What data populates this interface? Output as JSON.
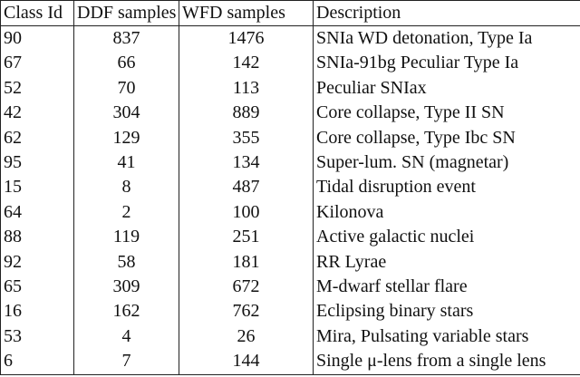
{
  "table": {
    "headers": [
      "Class Id",
      "DDF samples",
      "WFD samples",
      "Description"
    ],
    "rows": [
      [
        "90",
        "837",
        "1476",
        "SNIa WD detonation, Type Ia"
      ],
      [
        "67",
        "66",
        "142",
        "SNIa-91bg Peculiar Type Ia"
      ],
      [
        "52",
        "70",
        "113",
        "Peculiar SNIax"
      ],
      [
        "42",
        "304",
        "889",
        "Core collapse, Type II SN"
      ],
      [
        "62",
        "129",
        "355",
        "Core collapse, Type Ibc SN"
      ],
      [
        "95",
        "41",
        "134",
        "Super-lum. SN (magnetar)"
      ],
      [
        "15",
        "8",
        "487",
        "Tidal disruption event"
      ],
      [
        "64",
        "2",
        "100",
        "Kilonova"
      ],
      [
        "88",
        "119",
        "251",
        "Active galactic nuclei"
      ],
      [
        "92",
        "58",
        "181",
        "RR Lyrae"
      ],
      [
        "65",
        "309",
        "672",
        "M-dwarf stellar flare"
      ],
      [
        "16",
        "162",
        "762",
        "Eclipsing binary stars"
      ],
      [
        "53",
        "4",
        "26",
        "Mira, Pulsating variable stars"
      ],
      [
        "6",
        "7",
        "144",
        "Single μ-lens from a single lens"
      ]
    ]
  }
}
